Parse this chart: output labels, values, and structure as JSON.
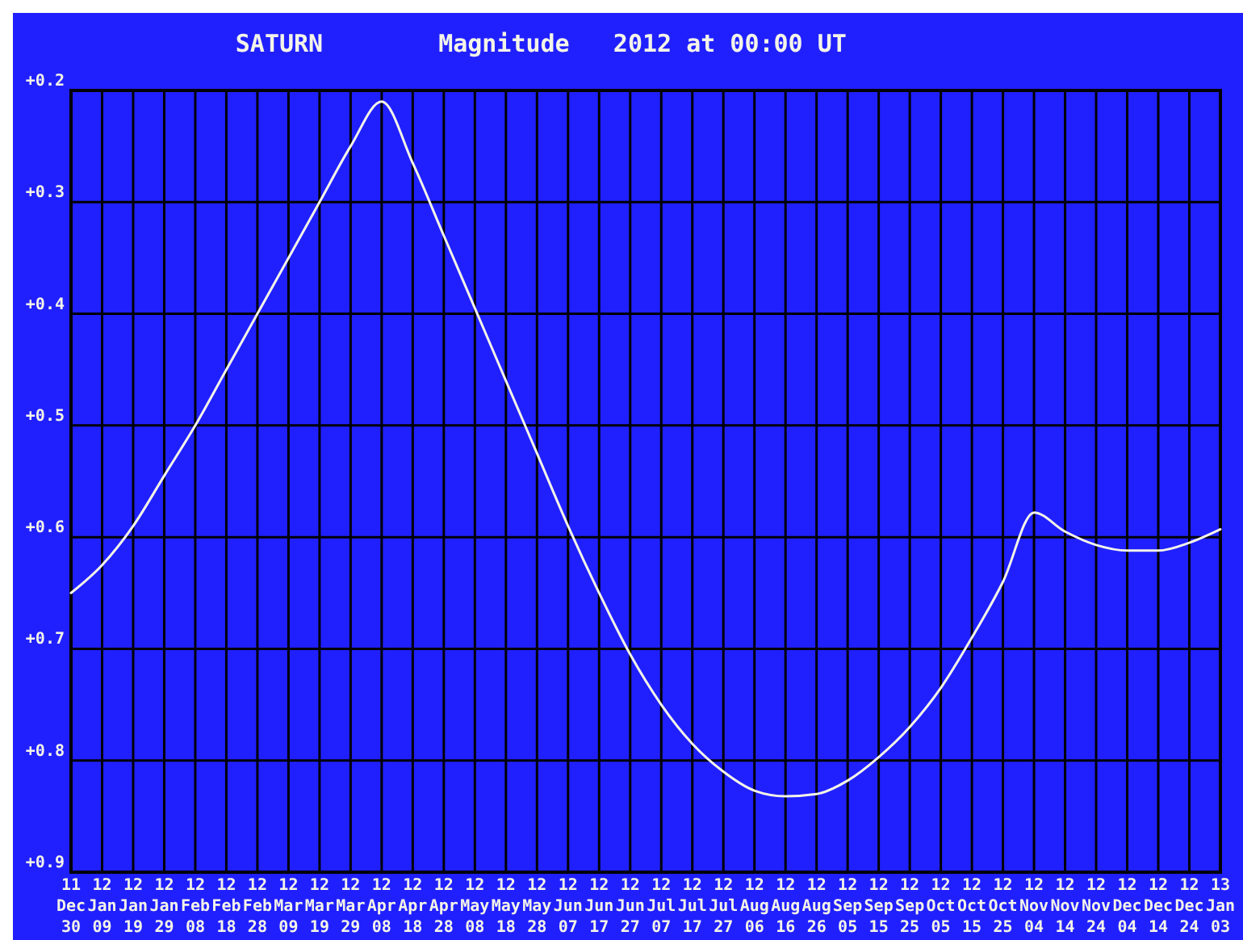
{
  "chart_data": {
    "type": "line",
    "title": "SATURN",
    "subtitle": "Magnitude   2012 at 00:00 UT",
    "x": [
      "2011-12-30",
      "2012-01-09",
      "2012-01-19",
      "2012-01-29",
      "2012-02-08",
      "2012-02-18",
      "2012-02-28",
      "2012-03-09",
      "2012-03-19",
      "2012-03-29",
      "2012-04-08",
      "2012-04-18",
      "2012-04-28",
      "2012-05-08",
      "2012-05-18",
      "2012-05-28",
      "2012-06-07",
      "2012-06-17",
      "2012-06-27",
      "2012-07-07",
      "2012-07-17",
      "2012-07-27",
      "2012-08-06",
      "2012-08-16",
      "2012-08-26",
      "2012-09-05",
      "2012-09-15",
      "2012-09-25",
      "2012-10-05",
      "2012-10-15",
      "2012-10-25",
      "2012-11-04",
      "2012-11-14",
      "2012-11-24",
      "2012-12-04",
      "2012-12-14",
      "2012-12-24",
      "2013-01-03"
    ],
    "series": [
      {
        "color": "#f4f4e8",
        "values": [
          0.65,
          0.625,
          0.59,
          0.545,
          0.5,
          0.45,
          0.4,
          0.35,
          0.3,
          0.25,
          0.21,
          0.265,
          0.33,
          0.395,
          0.46,
          0.525,
          0.59,
          0.65,
          0.705,
          0.75,
          0.785,
          0.81,
          0.827,
          0.832,
          0.83,
          0.818,
          0.797,
          0.77,
          0.735,
          0.69,
          0.64,
          0.578,
          0.595,
          0.607,
          0.612,
          0.612,
          0.605,
          0.593
        ]
      }
    ],
    "xlim": [
      "2011-12-30",
      "2013-01-03"
    ],
    "xticks": [
      {
        "value": "2011-12-30",
        "label": "11 Dec 30"
      },
      {
        "value": "2012-01-09",
        "label": "12 Jan 09"
      },
      {
        "value": "2012-01-19",
        "label": "12 Jan 19"
      },
      {
        "value": "2012-01-29",
        "label": "12 Jan 29"
      },
      {
        "value": "2012-02-08",
        "label": "12 Feb 08"
      },
      {
        "value": "2012-02-18",
        "label": "12 Feb 18"
      },
      {
        "value": "2012-02-28",
        "label": "12 Feb 28"
      },
      {
        "value": "2012-03-09",
        "label": "12 Mar 09"
      },
      {
        "value": "2012-03-19",
        "label": "12 Mar 19"
      },
      {
        "value": "2012-03-29",
        "label": "12 Mar 29"
      },
      {
        "value": "2012-04-08",
        "label": "12 Apr 08"
      },
      {
        "value": "2012-04-18",
        "label": "12 Apr 18"
      },
      {
        "value": "2012-04-28",
        "label": "12 Apr 28"
      },
      {
        "value": "2012-05-08",
        "label": "12 May 08"
      },
      {
        "value": "2012-05-18",
        "label": "12 May 18"
      },
      {
        "value": "2012-05-28",
        "label": "12 May 28"
      },
      {
        "value": "2012-06-07",
        "label": "12 Jun 07"
      },
      {
        "value": "2012-06-17",
        "label": "12 Jun 17"
      },
      {
        "value": "2012-06-27",
        "label": "12 Jun 27"
      },
      {
        "value": "2012-07-07",
        "label": "12 Jul 07"
      },
      {
        "value": "2012-07-17",
        "label": "12 Jul 17"
      },
      {
        "value": "2012-07-27",
        "label": "12 Jul 27"
      },
      {
        "value": "2012-08-06",
        "label": "12 Aug 06"
      },
      {
        "value": "2012-08-16",
        "label": "12 Aug 16"
      },
      {
        "value": "2012-08-26",
        "label": "12 Aug 26"
      },
      {
        "value": "2012-09-05",
        "label": "12 Sep 05"
      },
      {
        "value": "2012-09-15",
        "label": "12 Sep 15"
      },
      {
        "value": "2012-09-25",
        "label": "12 Sep 25"
      },
      {
        "value": "2012-10-05",
        "label": "12 Oct 05"
      },
      {
        "value": "2012-10-15",
        "label": "12 Oct 15"
      },
      {
        "value": "2012-10-25",
        "label": "12 Oct 25"
      },
      {
        "value": "2012-11-04",
        "label": "12 Nov 04"
      },
      {
        "value": "2012-11-14",
        "label": "12 Nov 14"
      },
      {
        "value": "2012-11-24",
        "label": "12 Nov 24"
      },
      {
        "value": "2012-12-04",
        "label": "12 Dec 04"
      },
      {
        "value": "2012-12-14",
        "label": "12 Dec 14"
      },
      {
        "value": "2012-12-24",
        "label": "12 Dec 24"
      },
      {
        "value": "2013-01-03",
        "label": "13 Jan 03"
      }
    ],
    "ylim": [
      0.9,
      0.2
    ],
    "yticks": [
      {
        "value": 0.2,
        "label": "+0.2"
      },
      {
        "value": 0.3,
        "label": "+0.3"
      },
      {
        "value": 0.4,
        "label": "+0.4"
      },
      {
        "value": 0.5,
        "label": "+0.5"
      },
      {
        "value": 0.6,
        "label": "+0.6"
      },
      {
        "value": 0.7,
        "label": "+0.7"
      },
      {
        "value": 0.8,
        "label": "+0.8"
      },
      {
        "value": 0.9,
        "label": "+0.9"
      }
    ],
    "grid": true,
    "marker": "none",
    "line_style": "solid"
  }
}
